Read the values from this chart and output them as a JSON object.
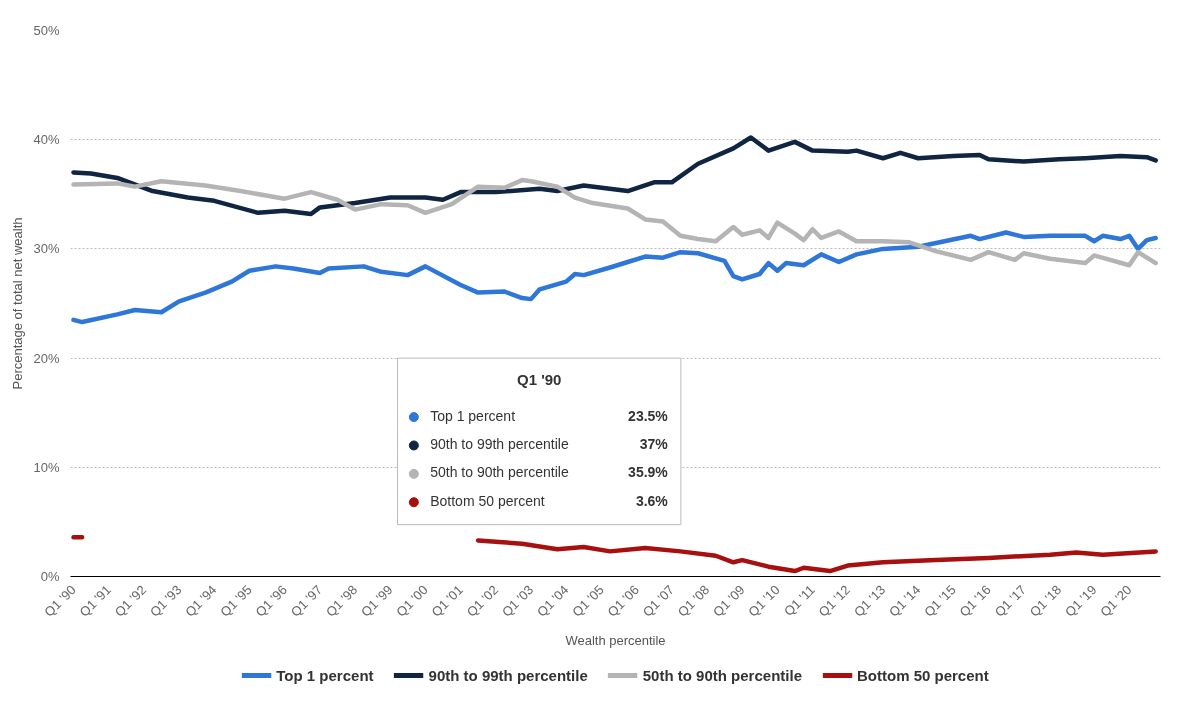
{
  "chart_data": {
    "type": "line",
    "xlabel": "Wealth percentile",
    "ylabel": "Percentage of total net wealth",
    "xlim": [
      "1989-12-01",
      "2020-11-20"
    ],
    "ylim": [
      0,
      50
    ],
    "xticks": [
      {
        "value": "1990-01",
        "label": "Q1 '90"
      },
      {
        "value": "1991-01",
        "label": "Q1 '91"
      },
      {
        "value": "1992-01",
        "label": "Q1 '92"
      },
      {
        "value": "1993-01",
        "label": "Q1 '93"
      },
      {
        "value": "1994-01",
        "label": "Q1 '94"
      },
      {
        "value": "1995-01",
        "label": "Q1 '95"
      },
      {
        "value": "1996-01",
        "label": "Q1 '96"
      },
      {
        "value": "1997-01",
        "label": "Q1 '97"
      },
      {
        "value": "1998-01",
        "label": "Q1 '98"
      },
      {
        "value": "1999-01",
        "label": "Q1 '99"
      },
      {
        "value": "2000-01",
        "label": "Q1 '00"
      },
      {
        "value": "2001-01",
        "label": "Q1 '01"
      },
      {
        "value": "2002-01",
        "label": "Q1 '02"
      },
      {
        "value": "2003-01",
        "label": "Q1 '03"
      },
      {
        "value": "2004-01",
        "label": "Q1 '04"
      },
      {
        "value": "2005-01",
        "label": "Q1 '05"
      },
      {
        "value": "2006-01",
        "label": "Q1 '06"
      },
      {
        "value": "2007-01",
        "label": "Q1 '07"
      },
      {
        "value": "2008-01",
        "label": "Q1 '08"
      },
      {
        "value": "2009-01",
        "label": "Q1 '09"
      },
      {
        "value": "2010-01",
        "label": "Q1 '10"
      },
      {
        "value": "2011-01",
        "label": "Q1 '11"
      },
      {
        "value": "2012-01",
        "label": "Q1 '12"
      },
      {
        "value": "2013-01",
        "label": "Q1 '13"
      },
      {
        "value": "2014-01",
        "label": "Q1 '14"
      },
      {
        "value": "2015-01",
        "label": "Q1 '15"
      },
      {
        "value": "2016-01",
        "label": "Q1 '16"
      },
      {
        "value": "2017-01",
        "label": "Q1 '17"
      },
      {
        "value": "2018-01",
        "label": "Q1 '18"
      },
      {
        "value": "2019-01",
        "label": "Q1 '19"
      },
      {
        "value": "2020-01",
        "label": "Q1 '20"
      }
    ],
    "yticks": [
      {
        "value": 0,
        "label": "0%"
      },
      {
        "value": 10,
        "label": "10%"
      },
      {
        "value": 20,
        "label": "20%"
      },
      {
        "value": 30,
        "label": "30%"
      },
      {
        "value": 40,
        "label": "40%"
      },
      {
        "value": 50,
        "label": "50%"
      }
    ],
    "grid": "y",
    "legend": "bottom",
    "line_style": "solid",
    "annotations": [
      "Q1 '90",
      "23.5%",
      "37%",
      "35.9%",
      "3.6%"
    ],
    "series": [
      {
        "name": "Top 1 percent",
        "color": "#2f76d9",
        "x": [
          "1990-01",
          "1990-04",
          "1991-04",
          "1991-10",
          "1992-07",
          "1993-01",
          "1993-10",
          "1994-07",
          "1995-01",
          "1995-10",
          "1996-04",
          "1997-01",
          "1997-04",
          "1998-04",
          "1998-10",
          "1999-07",
          "2000-01",
          "2001-01",
          "2001-07",
          "2002-04",
          "2002-10",
          "2003-01",
          "2003-04",
          "2004-01",
          "2004-04",
          "2004-07",
          "2005-04",
          "2005-10",
          "2006-04",
          "2006-10",
          "2007-04",
          "2007-10",
          "2008-07",
          "2008-10",
          "2009-01",
          "2009-07",
          "2009-10",
          "2010-01",
          "2010-04",
          "2010-10",
          "2011-04",
          "2011-10",
          "2012-04",
          "2013-01",
          "2014-01",
          "2014-10",
          "2015-07",
          "2015-10",
          "2016-07",
          "2017-01",
          "2017-10",
          "2018-10",
          "2019-01",
          "2019-04",
          "2019-10",
          "2020-01",
          "2020-04",
          "2020-07",
          "2020-10"
        ],
        "values": [
          23.5,
          23.3,
          24.0,
          24.4,
          24.2,
          25.2,
          26.0,
          27.0,
          28.0,
          28.4,
          28.2,
          27.8,
          28.2,
          28.4,
          27.9,
          27.6,
          28.4,
          26.7,
          26.0,
          26.1,
          25.5,
          25.4,
          26.3,
          27.0,
          27.7,
          27.6,
          28.3,
          28.8,
          29.3,
          29.2,
          29.7,
          29.6,
          28.9,
          27.5,
          27.2,
          27.7,
          28.7,
          28.0,
          28.7,
          28.5,
          29.5,
          28.8,
          29.5,
          30.0,
          30.2,
          30.7,
          31.2,
          30.9,
          31.5,
          31.1,
          31.2,
          31.2,
          30.7,
          31.2,
          30.9,
          31.2,
          30.0,
          30.8,
          31.0
        ]
      },
      {
        "name": "90th to 99th percentile",
        "color": "#0f2541",
        "x": [
          "1990-01",
          "1990-07",
          "1991-04",
          "1992-04",
          "1993-04",
          "1994-01",
          "1995-04",
          "1996-01",
          "1996-10",
          "1997-01",
          "1998-01",
          "1999-01",
          "2000-01",
          "2000-07",
          "2001-01",
          "2002-01",
          "2003-04",
          "2003-10",
          "2004-07",
          "2005-10",
          "2006-07",
          "2007-01",
          "2007-10",
          "2008-10",
          "2009-04",
          "2009-10",
          "2010-07",
          "2011-01",
          "2012-01",
          "2012-04",
          "2013-01",
          "2013-07",
          "2014-01",
          "2015-01",
          "2015-10",
          "2016-01",
          "2017-01",
          "2018-01",
          "2018-10",
          "2019-10",
          "2020-07",
          "2020-10"
        ],
        "values": [
          37.0,
          36.9,
          36.5,
          35.3,
          34.7,
          34.4,
          33.3,
          33.5,
          33.2,
          33.8,
          34.2,
          34.7,
          34.7,
          34.5,
          35.2,
          35.2,
          35.5,
          35.3,
          35.8,
          35.3,
          36.1,
          36.1,
          37.8,
          39.2,
          40.2,
          39.0,
          39.8,
          39.0,
          38.9,
          39.0,
          38.3,
          38.8,
          38.3,
          38.5,
          38.6,
          38.2,
          38.0,
          38.2,
          38.3,
          38.5,
          38.4,
          38.1
        ]
      },
      {
        "name": "50th to 90th percentile",
        "color": "#b4b4b4",
        "x": [
          "1990-01",
          "1991-04",
          "1991-10",
          "1992-07",
          "1993-10",
          "1994-10",
          "1996-01",
          "1996-10",
          "1997-07",
          "1998-01",
          "1998-10",
          "1999-07",
          "2000-01",
          "2000-10",
          "2001-07",
          "2002-04",
          "2002-10",
          "2003-01",
          "2003-10",
          "2004-04",
          "2004-10",
          "2005-10",
          "2006-04",
          "2006-10",
          "2007-04",
          "2007-10",
          "2008-04",
          "2008-10",
          "2009-01",
          "2009-07",
          "2009-10",
          "2010-01",
          "2010-07",
          "2010-10",
          "2011-01",
          "2011-04",
          "2011-10",
          "2012-04",
          "2013-01",
          "2013-10",
          "2014-07",
          "2015-07",
          "2016-01",
          "2016-10",
          "2017-01",
          "2017-10",
          "2018-10",
          "2019-01",
          "2020-01",
          "2020-04",
          "2020-10"
        ],
        "values": [
          35.9,
          36.0,
          35.7,
          36.2,
          35.8,
          35.3,
          34.6,
          35.2,
          34.5,
          33.6,
          34.1,
          34.0,
          33.3,
          34.1,
          35.7,
          35.6,
          36.3,
          36.2,
          35.7,
          34.7,
          34.2,
          33.7,
          32.7,
          32.5,
          31.2,
          30.9,
          30.7,
          32.0,
          31.3,
          31.7,
          31.0,
          32.4,
          31.4,
          30.8,
          31.8,
          31.0,
          31.6,
          30.7,
          30.7,
          30.6,
          29.8,
          29.0,
          29.7,
          29.0,
          29.6,
          29.1,
          28.7,
          29.4,
          28.5,
          29.7,
          28.7
        ]
      },
      {
        "name": "Bottom 50 percent",
        "color": "#a80f0f",
        "x": [
          "1990-01",
          "1990-04",
          "1990-07",
          "2001-07",
          "2002-10",
          "2003-10",
          "2004-07",
          "2005-04",
          "2006-04",
          "2007-04",
          "2008-04",
          "2008-10",
          "2009-01",
          "2009-10",
          "2010-07",
          "2010-10",
          "2011-07",
          "2012-01",
          "2013-01",
          "2014-07",
          "2016-01",
          "2017-10",
          "2018-07",
          "2019-04",
          "2020-10"
        ],
        "values": [
          3.6,
          3.6,
          null,
          3.3,
          3.0,
          2.5,
          2.7,
          2.3,
          2.6,
          2.3,
          1.9,
          1.3,
          1.5,
          0.9,
          0.5,
          0.8,
          0.5,
          1.0,
          1.3,
          1.5,
          1.7,
          2.0,
          2.2,
          2.0,
          2.3
        ]
      }
    ]
  }
}
